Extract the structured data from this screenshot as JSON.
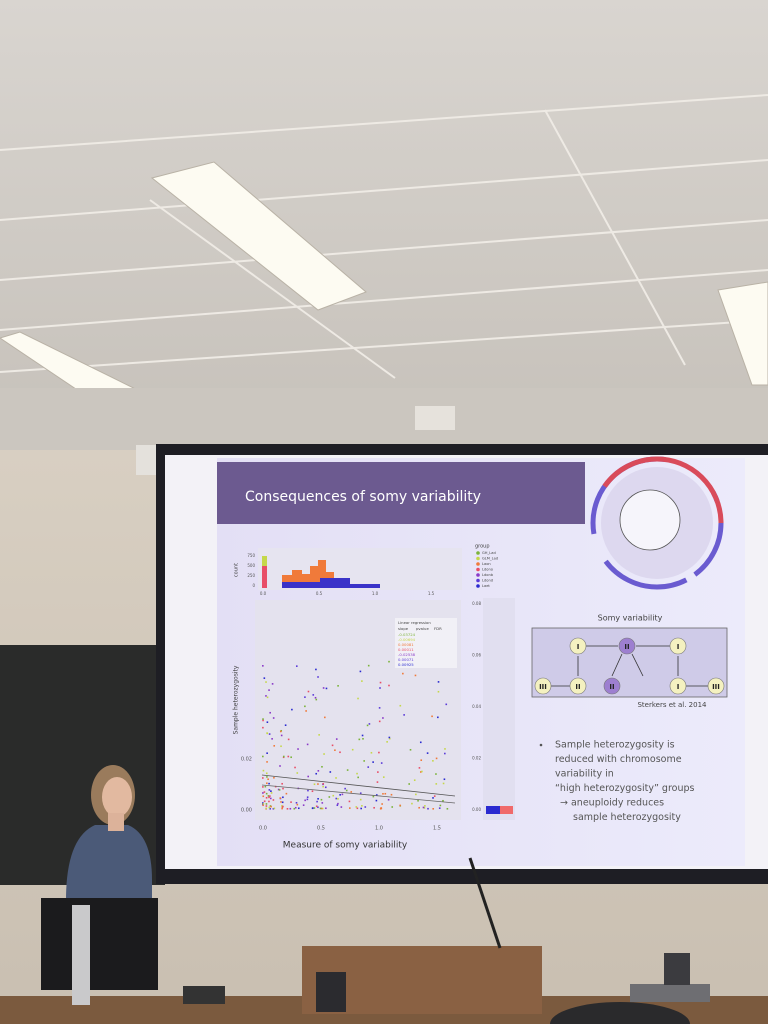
{
  "slide": {
    "title": "Consequences of somy variability",
    "histogram": {
      "y_label": "count",
      "y_ticks": [
        "750",
        "500",
        "250",
        "0"
      ],
      "x_ticks": [
        "0.0",
        "0.5",
        "1.0",
        "1.5"
      ]
    },
    "legend": {
      "title": "group",
      "items": [
        "GH_Lad",
        "GLM_Lad",
        "Laon",
        "Ldono",
        "Ldonb",
        "Ldond",
        "Laet"
      ]
    },
    "scatter": {
      "y_label": "Sample heterozygosity",
      "x_label": "Measure of somy variability",
      "y_ticks": [
        "0.02",
        "0.00"
      ],
      "x_ticks": [
        "0.0",
        "0.5",
        "1.0",
        "1.5"
      ]
    },
    "side_bar": {
      "y_ticks": [
        "0.08",
        "0.06",
        "0.04",
        "0.02",
        "0.00"
      ]
    },
    "regression": {
      "header": [
        "Linear regression",
        "slope",
        "pvalue",
        "FDR"
      ],
      "slopes": [
        "-0.03724",
        "-0.00694",
        "0.00081",
        "0.00011",
        "-0.02538",
        "0.00071",
        "0.00925"
      ]
    },
    "diagram": {
      "title": "Somy variability",
      "nodes": [
        "I",
        "II",
        "I",
        "III",
        "II",
        "II",
        "I",
        "III"
      ],
      "citation": "Sterkers et al. 2014"
    },
    "bullet": [
      "Sample heterozygosity is",
      "reduced with chromosome",
      "variability in",
      "“high heterozygosity” groups",
      "→ aneuploidy reduces",
      "sample heterozygosity"
    ]
  }
}
